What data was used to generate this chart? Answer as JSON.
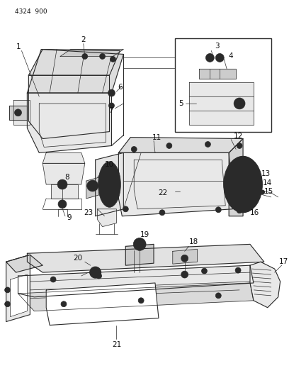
{
  "header_text": "4324 900",
  "bg_color": "#ffffff",
  "line_color": "#2a2a2a",
  "label_color": "#111111",
  "fig_width": 4.08,
  "fig_height": 5.33,
  "dpi": 100,
  "label_fontsize": 7.5,
  "header_fontsize": 6.5,
  "lw_thin": 0.5,
  "lw_med": 0.8,
  "lw_thick": 1.0,
  "gray_light": "#e8e8e8",
  "gray_mid": "#cccccc",
  "gray_dark": "#aaaaaa"
}
